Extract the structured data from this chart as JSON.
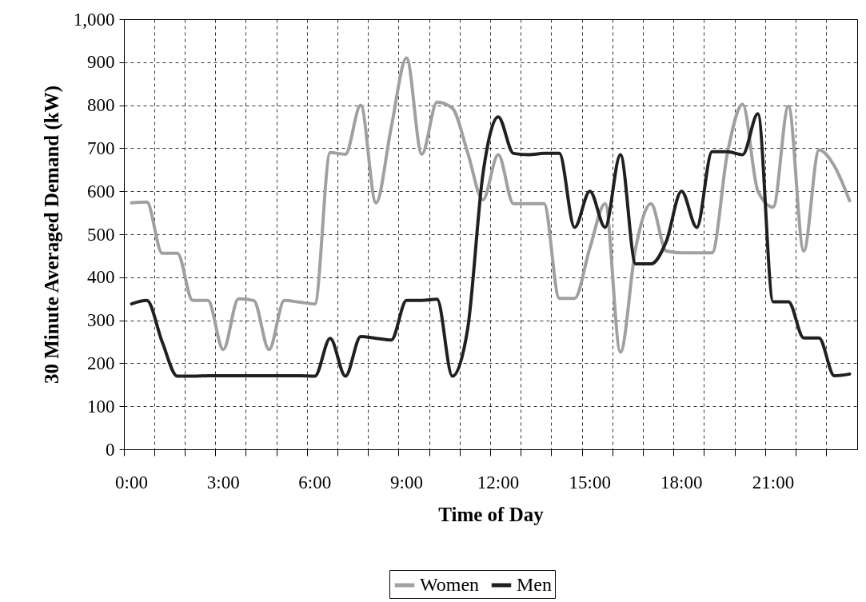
{
  "chart_data": {
    "type": "line",
    "xlabel": "Time of Day",
    "ylabel": "30 Minute Averaged Demand (kW)",
    "categories": [
      "0:00",
      null,
      null,
      null,
      null,
      null,
      "3:00",
      null,
      null,
      null,
      null,
      null,
      "6:00",
      null,
      null,
      null,
      null,
      null,
      "9:00",
      null,
      null,
      null,
      null,
      null,
      "12:00",
      null,
      null,
      null,
      null,
      null,
      "15:00",
      null,
      null,
      null,
      null,
      null,
      "18:00",
      null,
      null,
      null,
      null,
      null,
      "21:00",
      null,
      null,
      null,
      null,
      null
    ],
    "series": [
      {
        "name": "Women",
        "color": "#a0a0a0",
        "values": [
          573,
          575,
          456,
          456,
          346,
          346,
          232,
          350,
          346,
          232,
          346,
          342,
          338,
          690,
          686,
          800,
          573,
          749,
          910,
          686,
          807,
          793,
          690,
          580,
          685,
          571,
          571,
          571,
          351,
          351,
          468,
          571,
          226,
          468,
          571,
          461,
          457,
          457,
          457,
          688,
          802,
          600,
          563,
          798,
          461,
          696,
          659,
          578
        ]
      },
      {
        "name": "Men",
        "color": "#202020",
        "values": [
          338,
          346,
          250,
          170,
          170,
          171,
          171,
          171,
          171,
          171,
          171,
          171,
          170,
          258,
          170,
          262,
          258,
          254,
          346,
          346,
          349,
          170,
          280,
          640,
          773,
          688,
          685,
          688,
          688,
          516,
          600,
          516,
          685,
          431,
          431,
          483,
          600,
          516,
          692,
          692,
          685,
          780,
          343,
          343,
          259,
          259,
          171,
          175
        ]
      }
    ],
    "ylim": [
      0,
      1000
    ],
    "yticks": [
      0,
      100,
      200,
      300,
      400,
      500,
      600,
      700,
      800,
      900,
      {
        "value": 1000,
        "label": "1,000"
      }
    ],
    "grid": true,
    "legend": "bottom",
    "marker": "none",
    "line_style": "solid"
  }
}
